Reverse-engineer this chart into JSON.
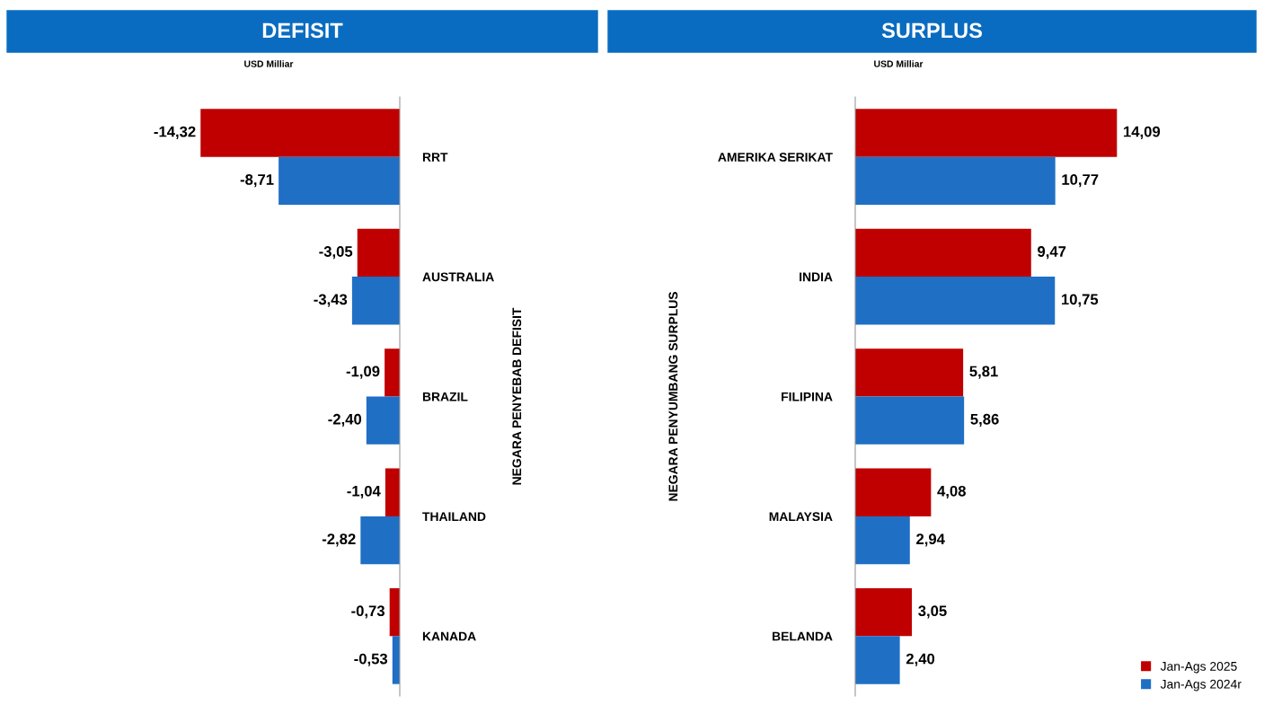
{
  "chart_data": [
    {
      "type": "bar",
      "orientation": "horizontal",
      "title": "DEFISIT",
      "subtitle": "USD Milliar",
      "ylabel": "NEGARA PENYEBAB DEFISIT",
      "categories": [
        "RRT",
        "AUSTRALIA",
        "BRAZIL",
        "THAILAND",
        "KANADA"
      ],
      "series": [
        {
          "color": "#c00000",
          "values": [
            -14.32,
            -3.05,
            -1.09,
            -1.04,
            -0.73
          ],
          "value_labels": [
            "-14,32",
            "-3,05",
            "-1,09",
            "-1,04",
            "-0,73"
          ]
        },
        {
          "color": "#1f6fc5",
          "values": [
            -8.71,
            -3.43,
            -2.4,
            -2.82,
            -0.53
          ],
          "value_labels": [
            "-8,71",
            "-3,43",
            "-2,40",
            "-2,82",
            "-0,53"
          ]
        }
      ],
      "legend": false,
      "grid": false
    },
    {
      "type": "bar",
      "orientation": "horizontal",
      "title": "SURPLUS",
      "subtitle": "USD Milliar",
      "ylabel": "NEGARA PENYUMBANG SURPLUS",
      "categories": [
        "AMERIKA SERIKAT",
        "INDIA",
        "FILIPINA",
        "MALAYSIA",
        "BELANDA"
      ],
      "series": [
        {
          "name": "Jan-Ags 2025",
          "color": "#c00000",
          "values": [
            14.09,
            9.47,
            5.81,
            4.08,
            3.05
          ],
          "value_labels": [
            "14,09",
            "9,47",
            "5,81",
            "4,08",
            "3,05"
          ]
        },
        {
          "name": "Jan-Ags 2024r",
          "color": "#1f6fc5",
          "values": [
            10.77,
            10.75,
            5.86,
            2.94,
            2.4
          ],
          "value_labels": [
            "10,77",
            "10,75",
            "5,86",
            "2,94",
            "2,40"
          ]
        }
      ],
      "legend": "bottom right",
      "grid": false
    }
  ]
}
